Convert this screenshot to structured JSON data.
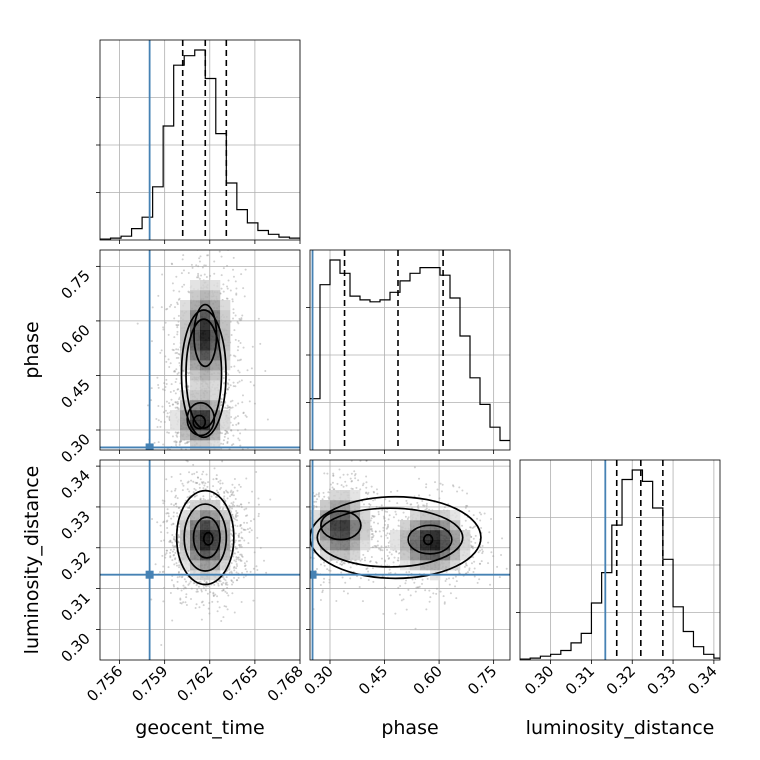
{
  "chart_data": {
    "type": "corner",
    "parameters": [
      "geocent_time",
      "phase",
      "luminosity_distance"
    ],
    "truth_color": "#4682b4",
    "truths": {
      "geocent_time": 0.758,
      "phase": 0.252,
      "luminosity_distance": 0.3134
    },
    "ranges": {
      "geocent_time": [
        0.7547,
        0.768
      ],
      "phase": [
        0.245,
        0.795
      ],
      "luminosity_distance": [
        0.2925,
        0.3415
      ]
    },
    "ticks": {
      "geocent_time": {
        "values": [
          0.756,
          0.759,
          0.762,
          0.765,
          0.768
        ],
        "labels": [
          "0.756",
          "0.759",
          "0.762",
          "0.765",
          "0.768"
        ]
      },
      "phase": {
        "values": [
          0.3,
          0.45,
          0.6,
          0.75
        ],
        "labels": [
          "0.30",
          "0.45",
          "0.60",
          "0.75"
        ]
      },
      "luminosity_distance": {
        "values": [
          0.3,
          0.31,
          0.32,
          0.33,
          0.34
        ],
        "labels": [
          "0.30",
          "0.31",
          "0.32",
          "0.33",
          "0.34"
        ]
      }
    },
    "quantiles": {
      "geocent_time": [
        0.7602,
        0.7617,
        0.7631
      ],
      "phase": [
        0.34,
        0.487,
        0.611
      ],
      "luminosity_distance": [
        0.3162,
        0.3221,
        0.3275
      ]
    },
    "histograms": [
      {
        "parameter": "geocent_time",
        "bin_edges": [
          0.7547,
          0.7554,
          0.7561,
          0.7568,
          0.7575,
          0.7582,
          0.7589,
          0.7596,
          0.7603,
          0.761,
          0.7617,
          0.7624,
          0.7631,
          0.7638,
          0.7645,
          0.7652,
          0.7659,
          0.7666,
          0.7673,
          0.768
        ],
        "counts": [
          0.005,
          0.01,
          0.02,
          0.06,
          0.12,
          0.28,
          0.6,
          0.92,
          0.97,
          1.0,
          0.85,
          0.56,
          0.3,
          0.16,
          0.09,
          0.05,
          0.03,
          0.015,
          0.01
        ]
      },
      {
        "parameter": "phase",
        "bin_edges": [
          0.245,
          0.2725,
          0.3,
          0.3275,
          0.355,
          0.3825,
          0.41,
          0.4375,
          0.465,
          0.4925,
          0.52,
          0.5475,
          0.575,
          0.6025,
          0.63,
          0.6575,
          0.685,
          0.7125,
          0.74,
          0.7675,
          0.795
        ],
        "counts": [
          0.27,
          0.87,
          1.0,
          0.93,
          0.81,
          0.79,
          0.78,
          0.79,
          0.83,
          0.89,
          0.93,
          0.96,
          0.96,
          0.92,
          0.8,
          0.6,
          0.38,
          0.24,
          0.12,
          0.05
        ]
      },
      {
        "parameter": "luminosity_distance",
        "bin_edges": [
          0.2925,
          0.295,
          0.2975,
          0.3,
          0.3025,
          0.305,
          0.3075,
          0.31,
          0.3125,
          0.315,
          0.3175,
          0.32,
          0.3225,
          0.325,
          0.3275,
          0.33,
          0.3325,
          0.335,
          0.3375,
          0.34,
          0.3415
        ],
        "counts": [
          0.005,
          0.01,
          0.02,
          0.03,
          0.05,
          0.09,
          0.14,
          0.3,
          0.46,
          0.71,
          0.95,
          1.0,
          0.94,
          0.8,
          0.53,
          0.28,
          0.15,
          0.07,
          0.03,
          0.01
        ]
      }
    ],
    "density_2d": [
      {
        "x": "geocent_time",
        "y": "phase",
        "modes": [
          {
            "center": [
              0.7617,
              0.56
            ],
            "sigma": [
              0.00085,
              0.075
            ],
            "weight": 1.0
          },
          {
            "center": [
              0.7614,
              0.325
            ],
            "sigma": [
              0.00085,
              0.04
            ],
            "weight": 1.0
          }
        ],
        "contours": [
          {
            "level": 1,
            "center": [
              0.7616,
              0.455
            ],
            "rx": 0.00148,
            "ry": 0.175
          },
          {
            "level": 2,
            "center": [
              0.7616,
              0.455
            ],
            "rx": 0.00118,
            "ry": 0.15
          },
          {
            "level": 3,
            "center": [
              0.7617,
              0.56
            ],
            "rx": 0.00075,
            "ry": 0.085
          },
          {
            "level": 3,
            "center": [
              0.7614,
              0.33
            ],
            "rx": 0.0009,
            "ry": 0.045
          },
          {
            "level": 4,
            "center": [
              0.7613,
              0.322
            ],
            "rx": 0.0004,
            "ry": 0.018
          }
        ]
      },
      {
        "x": "geocent_time",
        "y": "luminosity_distance",
        "modes": [
          {
            "center": [
              0.7618,
              0.3222
            ],
            "sigma": [
              0.0009,
              0.005
            ],
            "weight": 1.0
          }
        ],
        "contours": [
          {
            "level": 1,
            "center": [
              0.7617,
              0.3225
            ],
            "rx": 0.0019,
            "ry": 0.0115
          },
          {
            "level": 2,
            "center": [
              0.7617,
              0.3225
            ],
            "rx": 0.0014,
            "ry": 0.0082
          },
          {
            "level": 3,
            "center": [
              0.7618,
              0.3225
            ],
            "rx": 0.00088,
            "ry": 0.005
          },
          {
            "level": 4,
            "center": [
              0.7619,
              0.3222
            ],
            "rx": 0.0003,
            "ry": 0.0015
          }
        ]
      },
      {
        "x": "phase",
        "y": "luminosity_distance",
        "modes": [
          {
            "center": [
              0.33,
              0.325
            ],
            "sigma": [
              0.04,
              0.0045
            ],
            "weight": 0.9
          },
          {
            "center": [
              0.58,
              0.3215
            ],
            "sigma": [
              0.05,
              0.004
            ],
            "weight": 1.0
          }
        ],
        "contours": [
          {
            "level": 1,
            "center": [
              0.48,
              0.3225
            ],
            "rx": 0.235,
            "ry": 0.01
          },
          {
            "level": 2,
            "center": [
              0.465,
              0.3225
            ],
            "rx": 0.2,
            "ry": 0.0072
          },
          {
            "level": 3,
            "center": [
              0.33,
              0.3255
            ],
            "rx": 0.055,
            "ry": 0.0035
          },
          {
            "level": 3,
            "center": [
              0.575,
              0.322
            ],
            "rx": 0.06,
            "ry": 0.0035
          },
          {
            "level": 4,
            "center": [
              0.57,
              0.322
            ],
            "rx": 0.012,
            "ry": 0.0012
          }
        ]
      }
    ]
  }
}
